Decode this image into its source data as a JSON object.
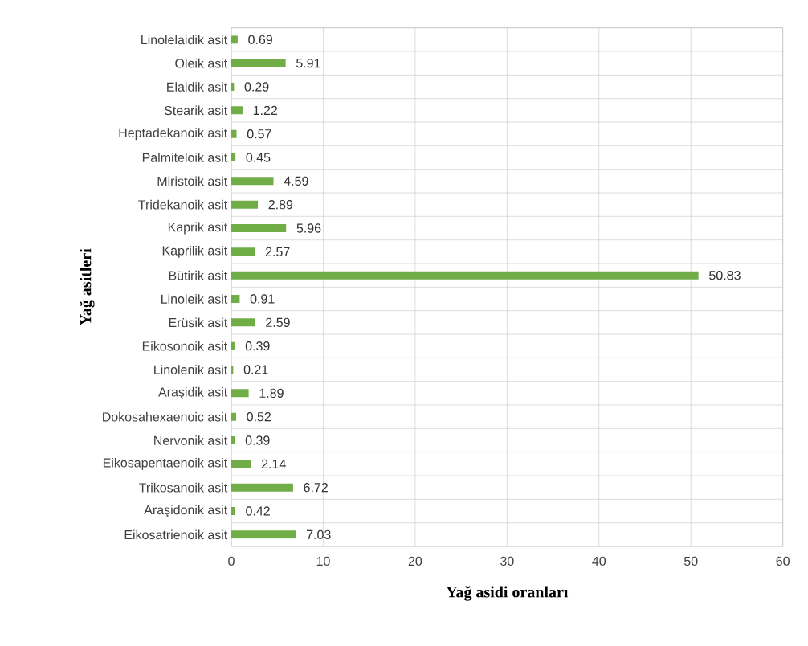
{
  "chart_data": {
    "type": "bar",
    "orientation": "horizontal",
    "xlabel": "Yağ asidi oranları",
    "ylabel": "Yağ asitleri",
    "categories": [
      "Linolelaidik asit",
      "Oleik asit",
      "Elaidik asit",
      "Stearik asit",
      "Heptadekanoik asit",
      "Palmiteloik asit",
      "Miristoik asit",
      "Tridekanoik asit",
      "Kaprik asit",
      "Kaprilik asit",
      "Bütirik asit",
      "Linoleik asit",
      "Erüsik asit",
      "Eikosonoik asit",
      "Linolenik asit",
      "Araşidik asit",
      "Dokosahexaenoic asit",
      "Nervonik asit",
      "Eikosapentaenoik asit",
      "Trikosanoik asit",
      "Araşidonik asit",
      "Eikosatrienoik asit"
    ],
    "values": [
      0.69,
      5.91,
      0.29,
      1.22,
      0.57,
      0.45,
      4.59,
      2.89,
      5.96,
      2.57,
      50.83,
      0.91,
      2.59,
      0.39,
      0.21,
      1.89,
      0.52,
      0.39,
      2.14,
      6.72,
      0.42,
      7.03
    ],
    "color": "#70ad47",
    "xlim": [
      0,
      60
    ],
    "xticks": [
      0,
      10,
      20,
      30,
      40,
      50,
      60
    ],
    "grid": true,
    "data_labels": true
  }
}
